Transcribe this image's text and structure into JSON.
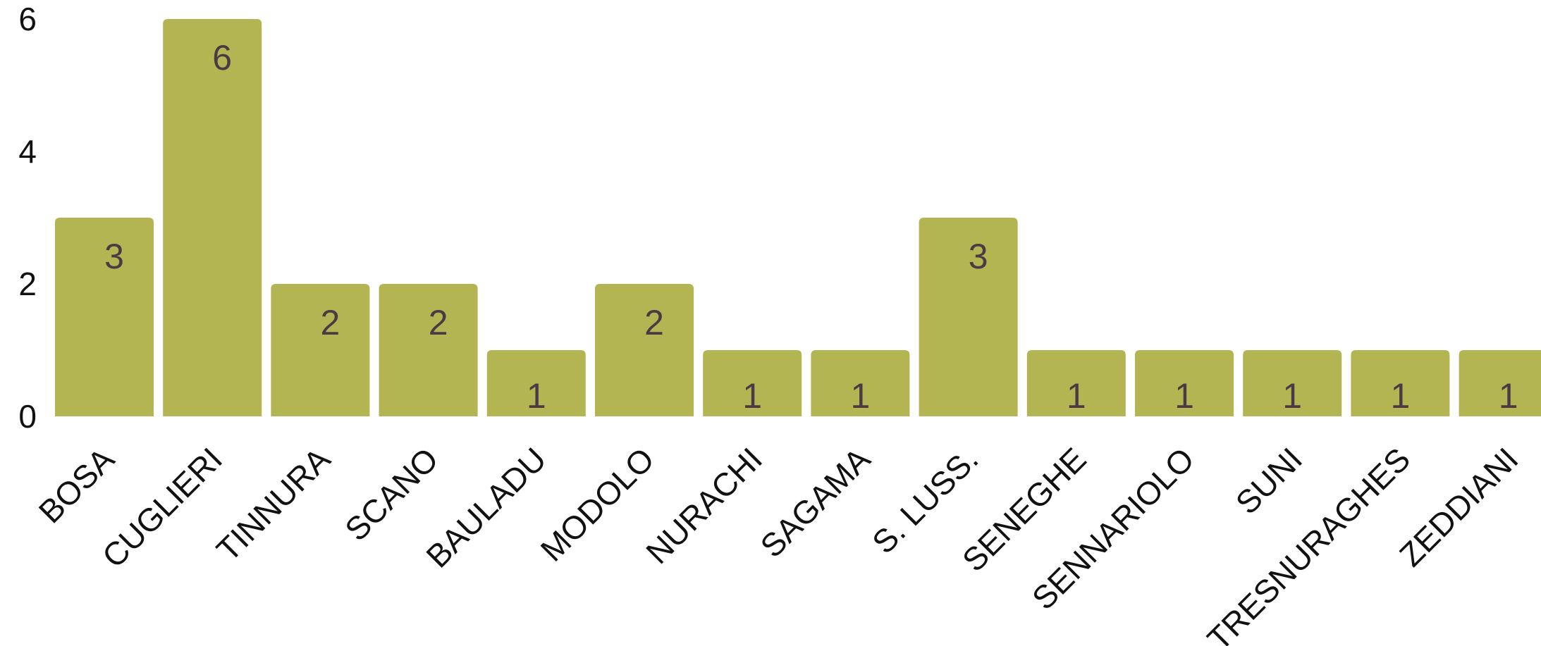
{
  "chart_data": {
    "type": "bar",
    "categories": [
      "BOSA",
      "CUGLIERI",
      "TINNURA",
      "SCANO",
      "BAULADU",
      "MODOLO",
      "NURACHI",
      "SAGAMA",
      "S. LUSS.",
      "SENEGHE",
      "SENNARIOLO",
      "SUNI",
      "TRESNURAGHES",
      "ZEDDIANI"
    ],
    "values": [
      3,
      6,
      2,
      2,
      1,
      2,
      1,
      1,
      3,
      1,
      1,
      1,
      1,
      1
    ],
    "title": "",
    "xlabel": "",
    "ylabel": "",
    "ylim": [
      0,
      6
    ],
    "yticks": [
      0,
      2,
      4,
      6
    ],
    "grid": false,
    "legend": "none",
    "bar_color": "#b3b552",
    "data_label_color": "#4a3a44"
  }
}
